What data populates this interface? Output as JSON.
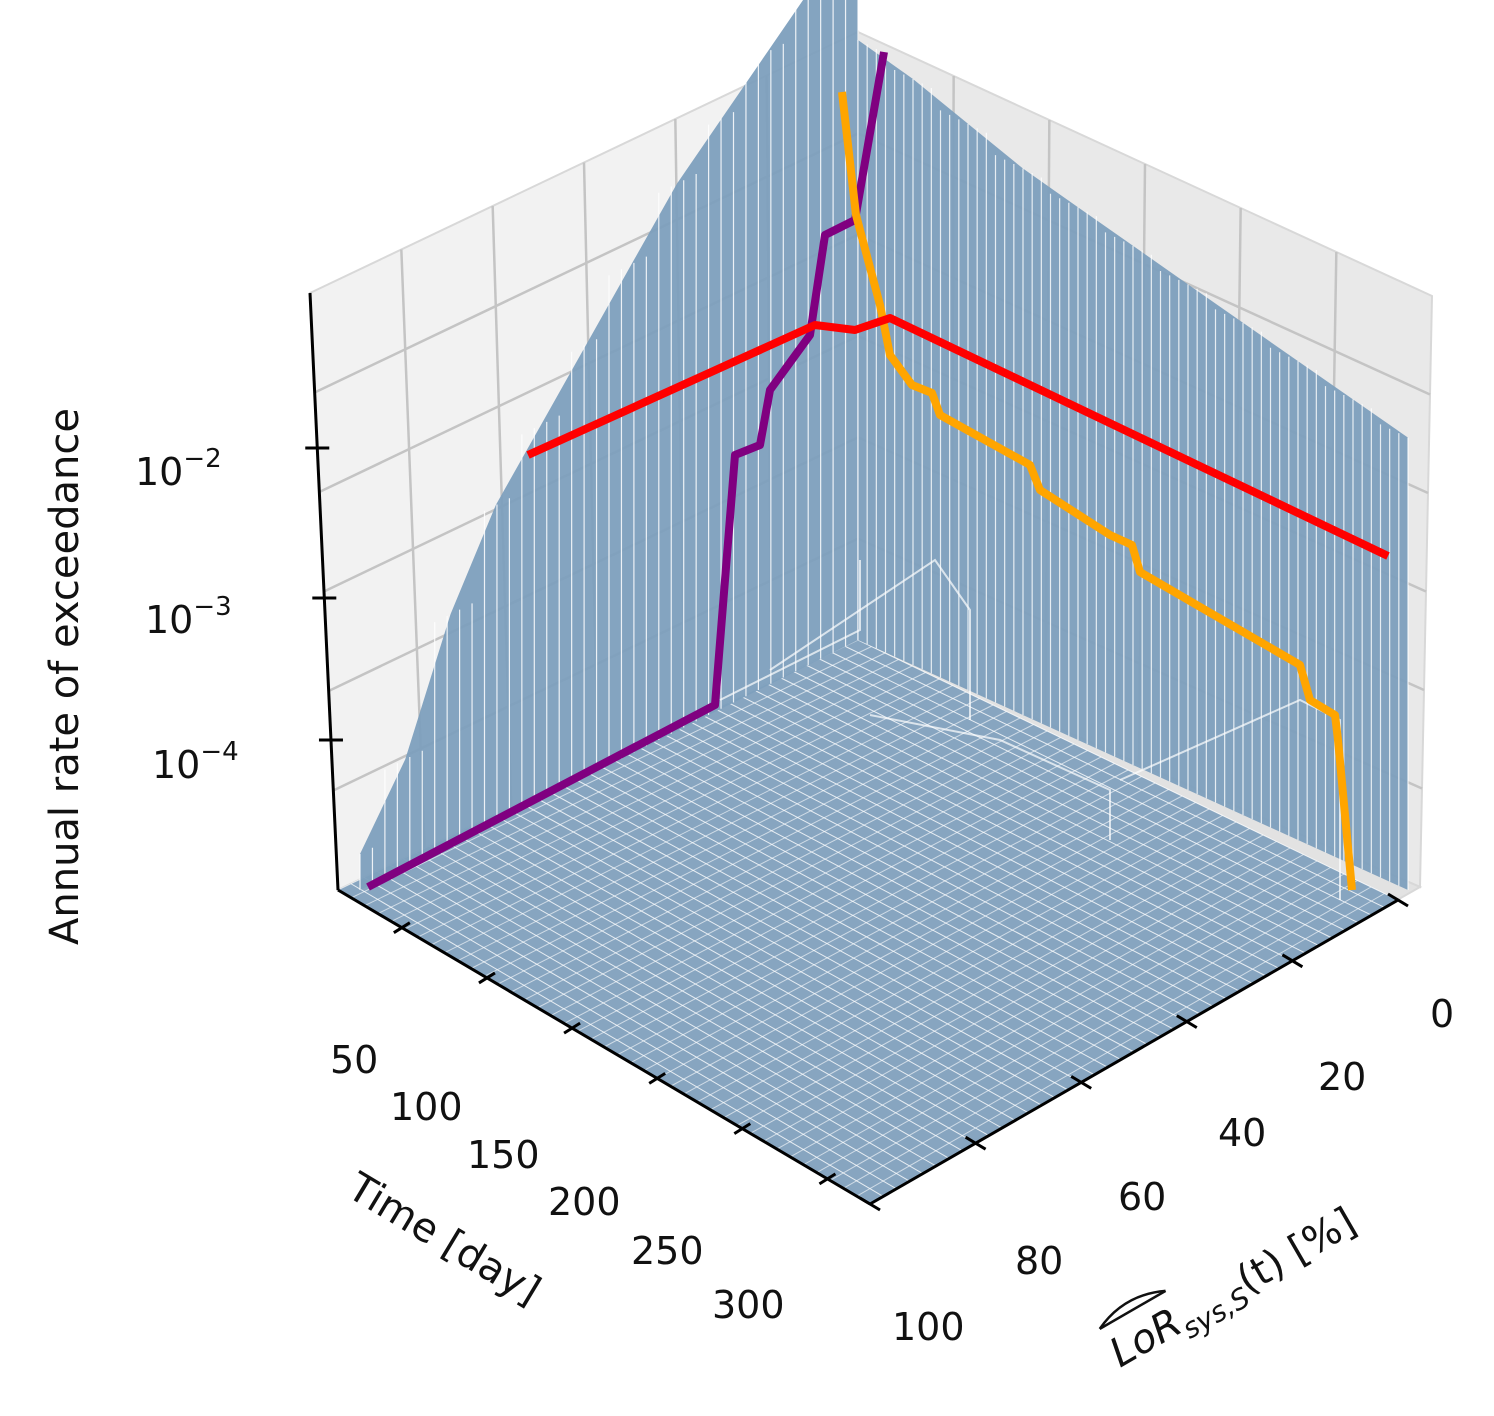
{
  "chart_data": {
    "type": "surface3d",
    "zlabel": "Annual rate of exceedance",
    "zscale": "log",
    "z_ticks": [
      {
        "base": "10",
        "exp": "−2",
        "value": 0.01
      },
      {
        "base": "10",
        "exp": "−3",
        "value": 0.001
      },
      {
        "base": "10",
        "exp": "−4",
        "value": 0.0001
      }
    ],
    "xlabel": "Time [day]",
    "x_ticks": [
      "50",
      "100",
      "150",
      "200",
      "250",
      "300"
    ],
    "x_range": [
      0,
      365
    ],
    "ylabel": {
      "main": "LoR",
      "sub": "sys,S",
      "rest": "(t) [%]"
    },
    "y_ticks": [
      "0",
      "20",
      "40",
      "60",
      "80",
      "100"
    ],
    "y_range": [
      0,
      100
    ],
    "surface_color": "#7d9fbd",
    "grid": true,
    "lines": [
      {
        "color": "#800080",
        "description_points": [
          [
            365,
            100
          ],
          [
            365,
            60
          ],
          [
            365,
            40
          ],
          [
            365,
            0
          ]
        ]
      },
      {
        "color": "#ffa500",
        "description_points": [
          [
            0,
            0
          ],
          [
            0,
            20
          ],
          [
            0,
            40
          ],
          [
            0,
            60
          ]
        ]
      },
      {
        "color": "#ff0000",
        "description_points": [
          [
            0,
            0
          ],
          [
            365,
            0
          ]
        ]
      }
    ]
  }
}
